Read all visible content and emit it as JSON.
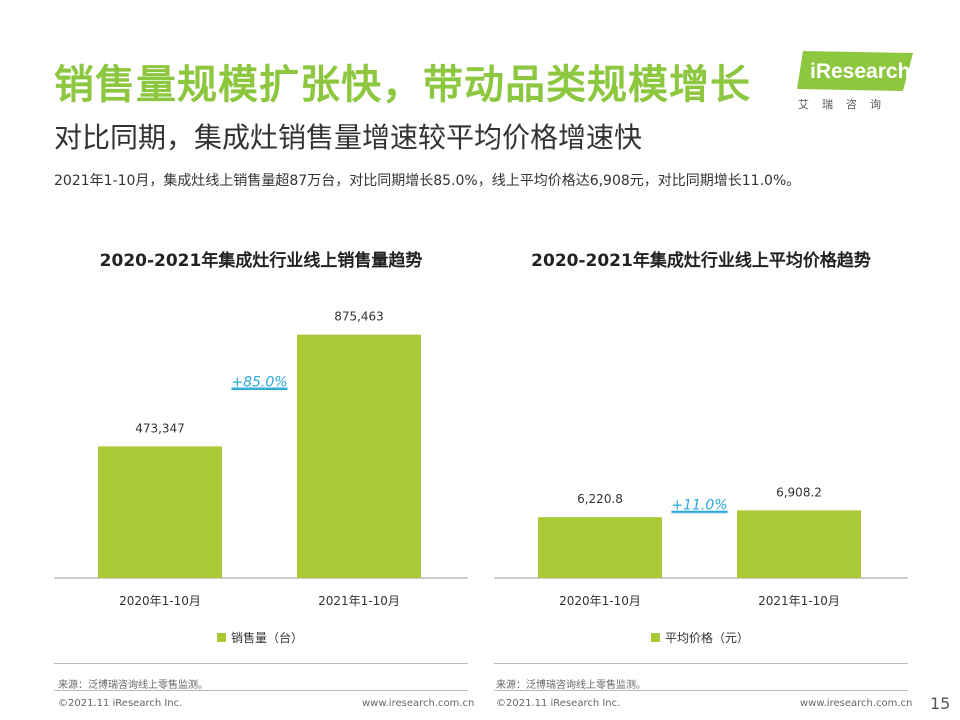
{
  "header": {
    "title": "销售量规模扩张快，带动品类规模增长",
    "subtitle": "对比同期，集成灶销售量增速较平均价格增速快",
    "summary": "2021年1-10月，集成灶线上销售量超87万台，对比同期增长85.0%，线上平均价格达6,908元，对比同期增长11.0%。"
  },
  "logo": {
    "text": "iResearch",
    "cn": "艾瑞咨询"
  },
  "brand_color": "#8dc63f",
  "bar_color": "#a9c937",
  "growth_color": "#2aa8d8",
  "left_panel": {
    "title": "2020-2021年集成灶行业线上销售量趋势",
    "source": "来源：泛博瑞咨询线上零售监测。",
    "footer_left": "©2021.11 iResearch Inc.",
    "footer_right": "www.iresearch.com.cn"
  },
  "right_panel": {
    "title": "2020-2021年集成灶行业线上平均价格趋势",
    "source": "来源：泛博瑞咨询线上零售监测。",
    "footer_left": "©2021.11 iResearch Inc.",
    "footer_right": "www.iresearch.com.cn"
  },
  "page_number": "15",
  "chart_data": [
    {
      "type": "bar",
      "title": "2020-2021年集成灶行业线上销售量趋势",
      "categories": [
        "2020年1-10月",
        "2021年1-10月"
      ],
      "series": [
        {
          "name": "销售量（台）",
          "values": [
            473347,
            875463
          ]
        }
      ],
      "value_labels": [
        "473,347",
        "875,463"
      ],
      "growth_label": "+85.0%",
      "ylim": [
        0,
        1000000
      ]
    },
    {
      "type": "bar",
      "title": "2020-2021年集成灶行业线上平均价格趋势",
      "categories": [
        "2020年1-10月",
        "2021年1-10月"
      ],
      "series": [
        {
          "name": "平均价格（元）",
          "values": [
            6220.8,
            6908.2
          ]
        }
      ],
      "value_labels": [
        "6,220.8",
        "6,908.2"
      ],
      "growth_label": "+11.0%",
      "ylim": [
        0,
        28400
      ]
    }
  ]
}
